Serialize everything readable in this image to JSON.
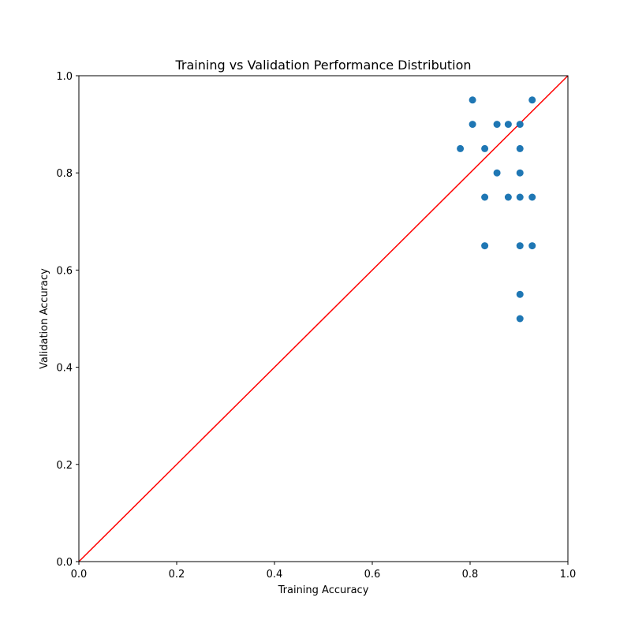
{
  "chart_data": {
    "type": "scatter",
    "title": "Training vs Validation Performance Distribution",
    "xlabel": "Training Accuracy",
    "ylabel": "Validation Accuracy",
    "xlim": [
      0,
      1
    ],
    "ylim": [
      0,
      1
    ],
    "xticks": [
      "0.0",
      "0.2",
      "0.4",
      "0.6",
      "0.8",
      "1.0"
    ],
    "yticks": [
      "0.0",
      "0.2",
      "0.4",
      "0.6",
      "0.8",
      "1.0"
    ],
    "grid": false,
    "marker_color": "#1f77b4",
    "reference_line": {
      "color": "#ff0000",
      "x": [
        0,
        1
      ],
      "y": [
        0,
        1
      ]
    },
    "points": [
      {
        "x": 0.805,
        "y": 0.95
      },
      {
        "x": 0.805,
        "y": 0.9
      },
      {
        "x": 0.78,
        "y": 0.85
      },
      {
        "x": 0.83,
        "y": 0.85
      },
      {
        "x": 0.83,
        "y": 0.75
      },
      {
        "x": 0.83,
        "y": 0.65
      },
      {
        "x": 0.855,
        "y": 0.9
      },
      {
        "x": 0.855,
        "y": 0.8
      },
      {
        "x": 0.878,
        "y": 0.9
      },
      {
        "x": 0.878,
        "y": 0.75
      },
      {
        "x": 0.902,
        "y": 0.9
      },
      {
        "x": 0.902,
        "y": 0.85
      },
      {
        "x": 0.902,
        "y": 0.8
      },
      {
        "x": 0.902,
        "y": 0.75
      },
      {
        "x": 0.902,
        "y": 0.65
      },
      {
        "x": 0.902,
        "y": 0.55
      },
      {
        "x": 0.902,
        "y": 0.5
      },
      {
        "x": 0.927,
        "y": 0.95
      },
      {
        "x": 0.927,
        "y": 0.75
      },
      {
        "x": 0.927,
        "y": 0.65
      }
    ]
  }
}
